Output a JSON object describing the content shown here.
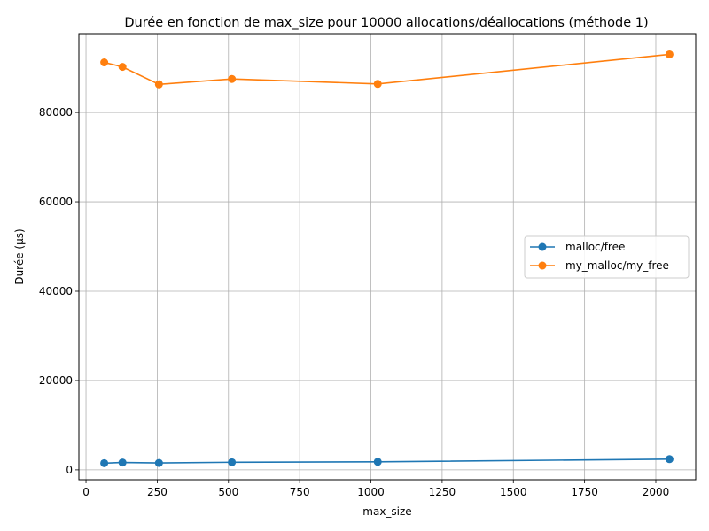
{
  "chart_data": {
    "type": "line",
    "title": "Durée en fonction de max_size pour 10000 allocations/déallocations (méthode 1)",
    "xlabel": "max_size",
    "ylabel": "Durée (µs)",
    "x": [
      64,
      128,
      256,
      512,
      1024,
      2048
    ],
    "series": [
      {
        "name": "malloc/free",
        "color": "#1f77b4",
        "values": [
          1500,
          1650,
          1550,
          1700,
          1800,
          2400
        ]
      },
      {
        "name": "my_malloc/my_free",
        "color": "#ff7f0e",
        "values": [
          91200,
          90200,
          86300,
          87500,
          86400,
          93000
        ]
      }
    ],
    "xlim": [
      -25,
      2140
    ],
    "ylim": [
      -2200,
      97650
    ],
    "xticks": [
      0,
      250,
      500,
      750,
      1000,
      1250,
      1500,
      1750,
      2000
    ],
    "yticks": [
      0,
      20000,
      40000,
      60000,
      80000
    ],
    "grid": true,
    "legend_position": "center-right",
    "marker": "circle"
  }
}
